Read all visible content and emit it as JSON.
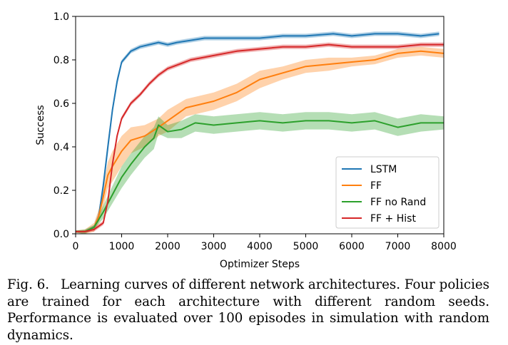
{
  "chart_data": {
    "type": "line",
    "title": "",
    "xlabel": "Optimizer Steps",
    "ylabel": "Success",
    "xlim": [
      0,
      8000
    ],
    "ylim": [
      0,
      1.0
    ],
    "xticks": [
      "0",
      "1000",
      "2000",
      "3000",
      "4000",
      "5000",
      "6000",
      "7000",
      "8000"
    ],
    "yticks": [
      "0.0",
      "0.2",
      "0.4",
      "0.6",
      "0.8",
      "1.0"
    ],
    "grid": false,
    "legend_position": "lower-right",
    "series": [
      {
        "name": "LSTM",
        "color": "#1f77b4",
        "x": [
          0,
          200,
          400,
          500,
          600,
          700,
          800,
          900,
          1000,
          1200,
          1400,
          1600,
          1800,
          2000,
          2200,
          2500,
          2800,
          3000,
          3500,
          4000,
          4500,
          5000,
          5600,
          6000,
          6500,
          7000,
          7500,
          7900
        ],
        "y": [
          0.01,
          0.01,
          0.03,
          0.08,
          0.22,
          0.4,
          0.57,
          0.7,
          0.79,
          0.84,
          0.86,
          0.87,
          0.88,
          0.87,
          0.88,
          0.89,
          0.9,
          0.9,
          0.9,
          0.9,
          0.91,
          0.91,
          0.92,
          0.91,
          0.92,
          0.92,
          0.91,
          0.92
        ],
        "band": [
          0.005,
          0.005,
          0.01,
          0.02,
          0.03,
          0.03,
          0.02,
          0.02,
          0.01,
          0.01,
          0.01,
          0.01,
          0.01,
          0.01,
          0.01,
          0.01,
          0.01,
          0.01,
          0.01,
          0.01,
          0.01,
          0.01,
          0.01,
          0.01,
          0.01,
          0.01,
          0.01,
          0.01
        ]
      },
      {
        "name": "FF",
        "color": "#ff7f0e",
        "x": [
          0,
          200,
          400,
          500,
          600,
          700,
          800,
          1000,
          1200,
          1500,
          1800,
          2000,
          2400,
          3000,
          3500,
          4000,
          4500,
          5000,
          5500,
          6000,
          6500,
          7000,
          7500,
          8000
        ],
        "y": [
          0.01,
          0.01,
          0.03,
          0.08,
          0.17,
          0.27,
          0.31,
          0.38,
          0.43,
          0.45,
          0.49,
          0.52,
          0.58,
          0.61,
          0.65,
          0.71,
          0.74,
          0.77,
          0.78,
          0.79,
          0.8,
          0.83,
          0.84,
          0.83
        ],
        "band": [
          0.005,
          0.01,
          0.02,
          0.03,
          0.05,
          0.06,
          0.07,
          0.07,
          0.06,
          0.05,
          0.04,
          0.05,
          0.04,
          0.04,
          0.04,
          0.04,
          0.03,
          0.03,
          0.03,
          0.02,
          0.02,
          0.02,
          0.02,
          0.02
        ]
      },
      {
        "name": "FF no Rand",
        "color": "#2ca02c",
        "x": [
          0,
          200,
          400,
          600,
          800,
          1000,
          1200,
          1500,
          1700,
          1800,
          2000,
          2300,
          2600,
          3000,
          3500,
          4000,
          4500,
          5000,
          5500,
          6000,
          6500,
          7000,
          7500,
          8000
        ],
        "y": [
          0.01,
          0.01,
          0.03,
          0.1,
          0.18,
          0.26,
          0.32,
          0.4,
          0.44,
          0.5,
          0.47,
          0.48,
          0.51,
          0.5,
          0.51,
          0.52,
          0.51,
          0.52,
          0.52,
          0.51,
          0.52,
          0.49,
          0.51,
          0.51
        ],
        "band": [
          0.005,
          0.01,
          0.01,
          0.03,
          0.04,
          0.05,
          0.05,
          0.05,
          0.05,
          0.04,
          0.03,
          0.04,
          0.04,
          0.04,
          0.04,
          0.04,
          0.04,
          0.04,
          0.04,
          0.04,
          0.04,
          0.04,
          0.04,
          0.03
        ]
      },
      {
        "name": "FF + Hist",
        "color": "#d62728",
        "x": [
          0,
          200,
          400,
          600,
          700,
          800,
          900,
          1000,
          1200,
          1400,
          1600,
          1800,
          2000,
          2500,
          3000,
          3500,
          4000,
          4500,
          5000,
          5500,
          6000,
          6500,
          7000,
          7500,
          8000
        ],
        "y": [
          0.01,
          0.01,
          0.02,
          0.05,
          0.15,
          0.32,
          0.45,
          0.53,
          0.6,
          0.64,
          0.69,
          0.73,
          0.76,
          0.8,
          0.82,
          0.84,
          0.85,
          0.86,
          0.86,
          0.87,
          0.86,
          0.86,
          0.86,
          0.87,
          0.87
        ],
        "band": [
          0.005,
          0.005,
          0.01,
          0.01,
          0.01,
          0.01,
          0.01,
          0.01,
          0.01,
          0.01,
          0.01,
          0.01,
          0.01,
          0.01,
          0.01,
          0.01,
          0.01,
          0.01,
          0.01,
          0.01,
          0.01,
          0.01,
          0.01,
          0.01,
          0.01
        ]
      }
    ]
  },
  "caption": {
    "label": "Fig. 6.",
    "text": "Learning curves of different network architectures. Four policies are trained for each architecture with different random seeds. Performance is evaluated over 100 episodes in simulation with random dynamics."
  }
}
